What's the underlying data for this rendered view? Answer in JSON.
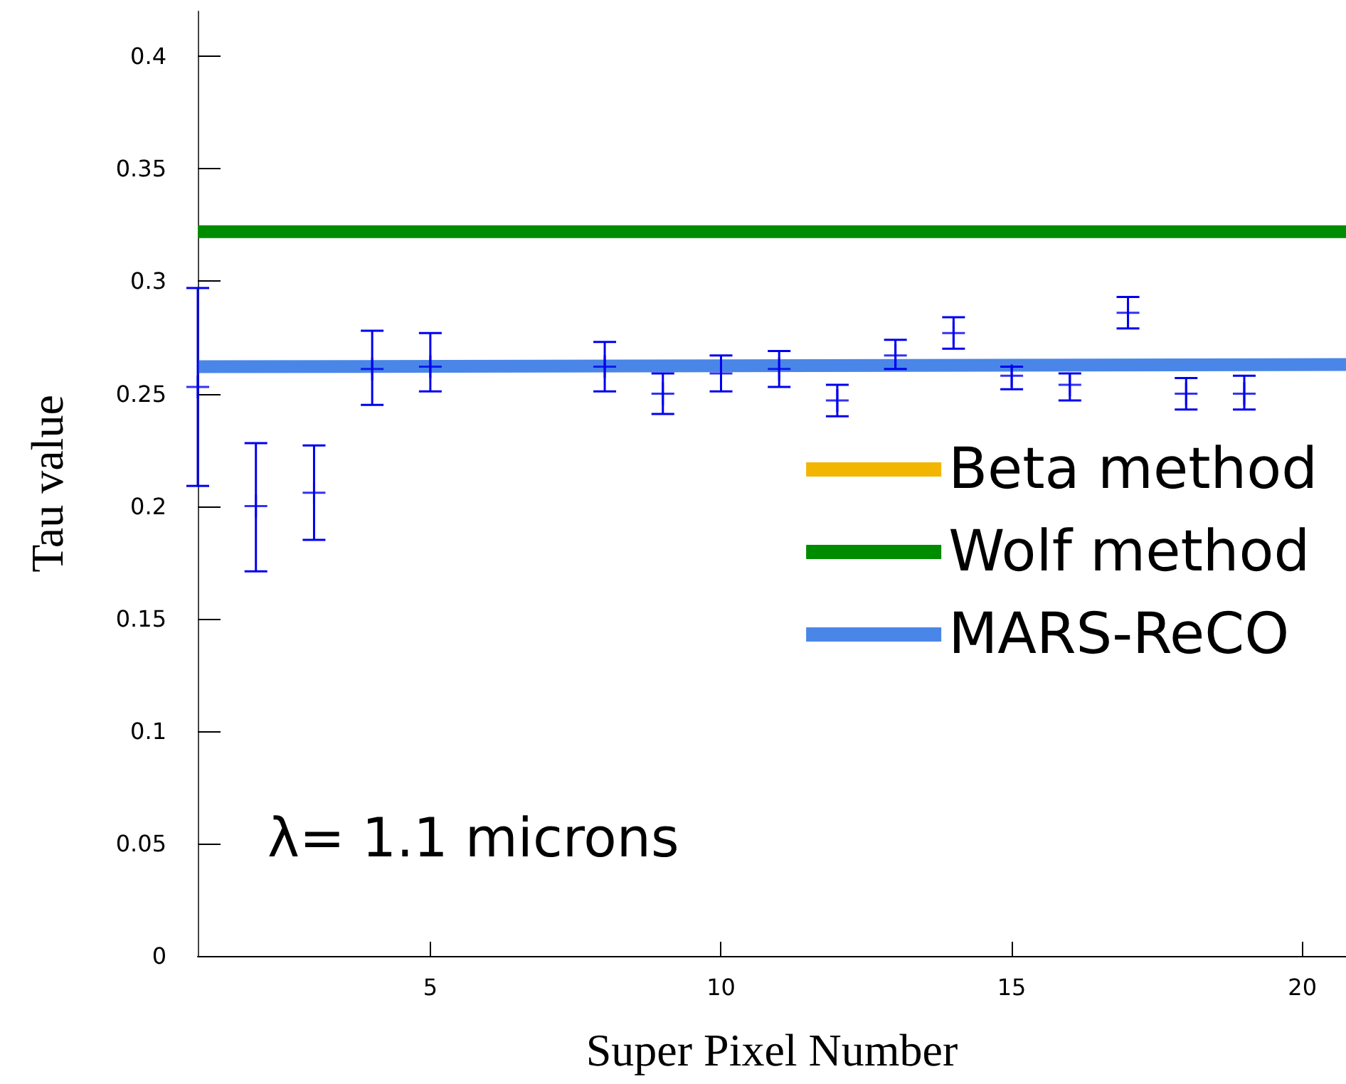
{
  "chart_data": {
    "type": "scatter",
    "xlabel": "Super Pixel Number",
    "ylabel": "Tau value",
    "annotations": [
      "λ= 1.1 microns"
    ],
    "xlim": [
      1,
      20.75
    ],
    "xticks": [
      5,
      10,
      15,
      20
    ],
    "ylim": [
      0,
      0.42
    ],
    "yticks": [
      0,
      0.05,
      0.1,
      0.15,
      0.2,
      0.25,
      0.3,
      0.35,
      0.4
    ],
    "grid": false,
    "legend": "right",
    "series": [
      {
        "marker": "cross",
        "color": "#0000ee",
        "x": [
          1,
          2,
          3,
          4,
          5,
          8,
          9,
          10,
          11,
          12,
          13,
          14,
          15,
          16,
          17,
          18,
          19
        ],
        "values": [
          0.253,
          0.2,
          0.206,
          0.261,
          0.262,
          0.262,
          0.25,
          0.259,
          0.261,
          0.247,
          0.267,
          0.277,
          0.258,
          0.254,
          0.286,
          0.25,
          0.25
        ],
        "errors": [
          [
            0.209,
            0.297
          ],
          [
            0.171,
            0.228
          ],
          [
            0.185,
            0.227
          ],
          [
            0.245,
            0.278
          ],
          [
            0.251,
            0.277
          ],
          [
            0.251,
            0.273
          ],
          [
            0.241,
            0.259
          ],
          [
            0.251,
            0.267
          ],
          [
            0.253,
            0.269
          ],
          [
            0.24,
            0.254
          ],
          [
            0.261,
            0.274
          ],
          [
            0.27,
            0.284
          ],
          [
            0.252,
            0.262
          ],
          [
            0.247,
            0.259
          ],
          [
            0.279,
            0.293
          ],
          [
            0.243,
            0.257
          ],
          [
            0.243,
            0.258
          ]
        ]
      },
      {
        "type": "line",
        "name": "Beta method",
        "color": "#f2b600",
        "values": [
          null
        ]
      },
      {
        "type": "line",
        "name": "Wolf method",
        "color": "#008c00",
        "x": [
          1,
          20.75
        ],
        "values": [
          0.322,
          0.322
        ]
      },
      {
        "type": "line",
        "name": "MARS-ReCO",
        "color": "#4a86e8",
        "x": [
          1,
          20.75
        ],
        "values": [
          0.262,
          0.263
        ]
      }
    ]
  }
}
